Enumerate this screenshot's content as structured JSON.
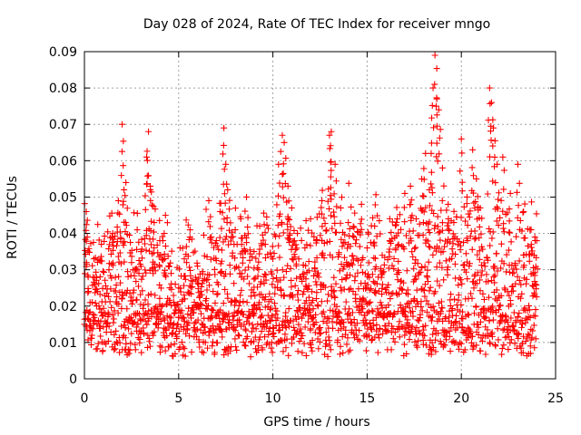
{
  "chart_data": {
    "type": "scatter",
    "title": "Day 028 of 2024, Rate Of TEC Index for receiver mngo",
    "xlabel": "GPS time / hours",
    "ylabel": "ROTI / TECUs",
    "xlim": [
      0,
      25
    ],
    "ylim": [
      0,
      0.09
    ],
    "x_ticks": [
      0,
      5,
      10,
      15,
      20,
      25
    ],
    "x_tick_labels": [
      "0",
      "5",
      "10",
      "15",
      "20",
      "25"
    ],
    "y_ticks": [
      0,
      0.01,
      0.02,
      0.03,
      0.04,
      0.05,
      0.06,
      0.07,
      0.08,
      0.09
    ],
    "y_tick_labels": [
      "0",
      "0.01",
      "0.02",
      "0.03",
      "0.04",
      "0.05",
      "0.06",
      "0.07",
      "0.08",
      "0.09"
    ],
    "grid": true,
    "marker": "+",
    "color": "#ff0000",
    "series": [
      {
        "name": "ROTI",
        "points": [
          [
            0.0,
            0.015
          ],
          [
            0.1,
            0.046
          ],
          [
            0.15,
            0.039
          ],
          [
            0.2,
            0.028
          ],
          [
            0.3,
            0.021
          ],
          [
            0.5,
            0.033
          ],
          [
            0.7,
            0.024
          ],
          [
            0.9,
            0.037
          ],
          [
            1.1,
            0.018
          ],
          [
            1.3,
            0.03
          ],
          [
            1.5,
            0.04
          ],
          [
            1.8,
            0.049
          ],
          [
            2.0,
            0.07
          ],
          [
            2.1,
            0.052
          ],
          [
            2.2,
            0.054
          ],
          [
            2.5,
            0.032
          ],
          [
            2.8,
            0.041
          ],
          [
            3.0,
            0.035
          ],
          [
            3.3,
            0.061
          ],
          [
            3.4,
            0.068
          ],
          [
            3.5,
            0.052
          ],
          [
            3.7,
            0.043
          ],
          [
            4.0,
            0.038
          ],
          [
            4.3,
            0.045
          ],
          [
            4.6,
            0.029
          ],
          [
            5.0,
            0.025
          ],
          [
            5.3,
            0.033
          ],
          [
            5.6,
            0.039
          ],
          [
            6.0,
            0.031
          ],
          [
            6.3,
            0.027
          ],
          [
            6.6,
            0.049
          ],
          [
            7.0,
            0.038
          ],
          [
            7.2,
            0.046
          ],
          [
            7.4,
            0.069
          ],
          [
            7.5,
            0.059
          ],
          [
            7.6,
            0.052
          ],
          [
            8.0,
            0.041
          ],
          [
            8.3,
            0.044
          ],
          [
            8.6,
            0.05
          ],
          [
            9.0,
            0.035
          ],
          [
            9.3,
            0.042
          ],
          [
            9.6,
            0.037
          ],
          [
            10.0,
            0.033
          ],
          [
            10.3,
            0.059
          ],
          [
            10.5,
            0.067
          ],
          [
            10.6,
            0.065
          ],
          [
            10.8,
            0.053
          ],
          [
            11.0,
            0.047
          ],
          [
            11.3,
            0.04
          ],
          [
            11.7,
            0.036
          ],
          [
            12.0,
            0.044
          ],
          [
            12.3,
            0.038
          ],
          [
            12.6,
            0.049
          ],
          [
            13.0,
            0.067
          ],
          [
            13.1,
            0.068
          ],
          [
            13.3,
            0.059
          ],
          [
            13.6,
            0.047
          ],
          [
            14.0,
            0.043
          ],
          [
            14.3,
            0.039
          ],
          [
            14.7,
            0.048
          ],
          [
            15.0,
            0.036
          ],
          [
            15.4,
            0.042
          ],
          [
            15.8,
            0.034
          ],
          [
            16.2,
            0.038
          ],
          [
            16.6,
            0.044
          ],
          [
            17.0,
            0.051
          ],
          [
            17.3,
            0.053
          ],
          [
            17.6,
            0.044
          ],
          [
            17.9,
            0.055
          ],
          [
            18.1,
            0.062
          ],
          [
            18.3,
            0.052
          ],
          [
            18.4,
            0.062
          ],
          [
            18.5,
            0.08
          ],
          [
            18.6,
            0.089
          ],
          [
            18.7,
            0.077
          ],
          [
            18.8,
            0.074
          ],
          [
            19.0,
            0.058
          ],
          [
            19.3,
            0.048
          ],
          [
            19.6,
            0.043
          ],
          [
            20.0,
            0.066
          ],
          [
            20.3,
            0.05
          ],
          [
            20.6,
            0.063
          ],
          [
            20.8,
            0.055
          ],
          [
            21.0,
            0.047
          ],
          [
            21.5,
            0.08
          ],
          [
            21.6,
            0.076
          ],
          [
            21.7,
            0.069
          ],
          [
            21.9,
            0.059
          ],
          [
            22.2,
            0.061
          ],
          [
            22.6,
            0.051
          ],
          [
            23.0,
            0.059
          ],
          [
            23.3,
            0.046
          ],
          [
            23.7,
            0.041
          ],
          [
            23.9,
            0.039
          ],
          [
            24.0,
            0.038
          ]
        ]
      }
    ]
  }
}
